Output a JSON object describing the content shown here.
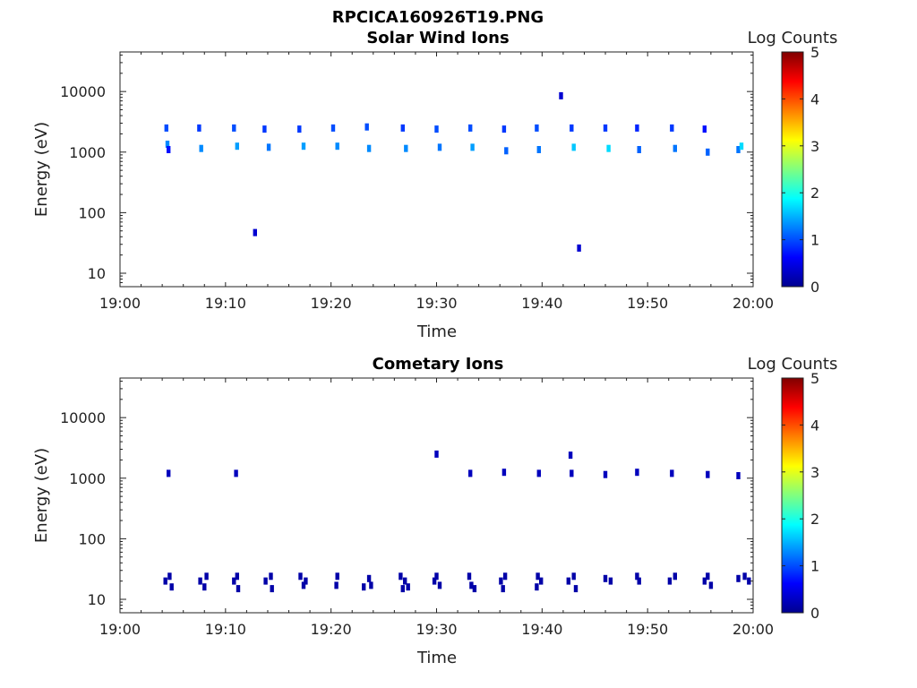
{
  "figure_title": "RPCICA160926T19.PNG",
  "chart_data": [
    {
      "type": "heatmap",
      "title": "Solar Wind Ions",
      "xlabel": "Time",
      "ylabel": "Energy (eV)",
      "x_ticks": [
        "19:00",
        "19:10",
        "19:20",
        "19:30",
        "19:40",
        "19:50",
        "20:00"
      ],
      "xlim": [
        "19:00",
        "20:00"
      ],
      "y_scale": "log",
      "y_ticks": [
        "10",
        "100",
        "1000",
        "10000"
      ],
      "ylim": [
        6,
        45000
      ],
      "colorbar": {
        "label": "Log Counts",
        "ticks": [
          "0",
          "1",
          "2",
          "3",
          "4",
          "5"
        ],
        "range": [
          0,
          5
        ],
        "colormap": "jet"
      },
      "cells": [
        [
          "19:04.4",
          2500,
          1.0
        ],
        [
          "19:04.5",
          1350,
          1.3
        ],
        [
          "19:04.6",
          1100,
          0.7
        ],
        [
          "19:07.5",
          2500,
          0.9
        ],
        [
          "19:07.7",
          1150,
          1.3
        ],
        [
          "19:10.8",
          2500,
          1.0
        ],
        [
          "19:11.1",
          1250,
          1.4
        ],
        [
          "19:13.7",
          2400,
          0.9
        ],
        [
          "19:14.1",
          1200,
          1.2
        ],
        [
          "19:17.0",
          2400,
          0.9
        ],
        [
          "19:17.4",
          1250,
          1.4
        ],
        [
          "19:20.2",
          2500,
          1.0
        ],
        [
          "19:20.6",
          1250,
          1.3
        ],
        [
          "19:23.4",
          2600,
          1.0
        ],
        [
          "19:23.6",
          1150,
          1.3
        ],
        [
          "19:26.8",
          2500,
          0.9
        ],
        [
          "19:27.1",
          1150,
          1.3
        ],
        [
          "19:30.0",
          2400,
          1.0
        ],
        [
          "19:30.3",
          1200,
          1.2
        ],
        [
          "19:33.2",
          2500,
          1.0
        ],
        [
          "19:33.4",
          1200,
          1.4
        ],
        [
          "19:36.4",
          2400,
          0.9
        ],
        [
          "19:36.6",
          1050,
          1.1
        ],
        [
          "19:39.5",
          2500,
          1.0
        ],
        [
          "19:39.7",
          1100,
          1.2
        ],
        [
          "19:41.8",
          8500,
          0.4
        ],
        [
          "19:42.8",
          2500,
          0.9
        ],
        [
          "19:43.0",
          1200,
          1.6
        ],
        [
          "19:43.5",
          26,
          0.4
        ],
        [
          "19:46.0",
          2500,
          0.9
        ],
        [
          "19:46.3",
          1150,
          1.7
        ],
        [
          "19:49.0",
          2500,
          0.8
        ],
        [
          "19:49.2",
          1100,
          1.1
        ],
        [
          "19:52.3",
          2500,
          0.9
        ],
        [
          "19:52.6",
          1150,
          1.2
        ],
        [
          "19:55.4",
          2400,
          0.7
        ],
        [
          "19:55.7",
          1000,
          1.1
        ],
        [
          "19:58.6",
          1100,
          1.2
        ],
        [
          "19:58.9",
          1250,
          1.7
        ],
        [
          "19:12.8",
          47,
          0.4
        ]
      ]
    },
    {
      "type": "heatmap",
      "title": "Cometary Ions",
      "xlabel": "Time",
      "ylabel": "Energy (eV)",
      "x_ticks": [
        "19:00",
        "19:10",
        "19:20",
        "19:30",
        "19:40",
        "19:50",
        "20:00"
      ],
      "xlim": [
        "19:00",
        "20:00"
      ],
      "y_scale": "log",
      "y_ticks": [
        "10",
        "100",
        "1000",
        "10000"
      ],
      "ylim": [
        6,
        45000
      ],
      "colorbar": {
        "label": "Log Counts",
        "ticks": [
          "0",
          "1",
          "2",
          "3",
          "4",
          "5"
        ],
        "range": [
          0,
          5
        ],
        "colormap": "jet"
      },
      "cells": [
        [
          "19:04.6",
          1200,
          0.3
        ],
        [
          "19:11.0",
          1200,
          0.3
        ],
        [
          "19:30.0",
          2500,
          0.3
        ],
        [
          "19:33.2",
          1200,
          0.3
        ],
        [
          "19:36.4",
          1250,
          0.3
        ],
        [
          "19:39.7",
          1200,
          0.3
        ],
        [
          "19:42.7",
          2400,
          0.3
        ],
        [
          "19:42.8",
          1200,
          0.3
        ],
        [
          "19:46.0",
          1150,
          0.3
        ],
        [
          "19:49.0",
          1250,
          0.3
        ],
        [
          "19:52.3",
          1200,
          0.3
        ],
        [
          "19:55.7",
          1150,
          0.3
        ],
        [
          "19:58.6",
          1100,
          0.3
        ],
        [
          "19:04.3",
          20,
          0.2
        ],
        [
          "19:04.7",
          24,
          0.2
        ],
        [
          "19:04.9",
          16,
          0.2
        ],
        [
          "19:07.6",
          20,
          0.2
        ],
        [
          "19:08.0",
          16,
          0.2
        ],
        [
          "19:08.2",
          24,
          0.2
        ],
        [
          "19:10.8",
          20,
          0.2
        ],
        [
          "19:11.1",
          24,
          0.2
        ],
        [
          "19:11.2",
          15,
          0.2
        ],
        [
          "19:13.8",
          20,
          0.2
        ],
        [
          "19:14.3",
          24,
          0.2
        ],
        [
          "19:14.4",
          15,
          0.2
        ],
        [
          "19:17.1",
          24,
          0.2
        ],
        [
          "19:17.4",
          17,
          0.2
        ],
        [
          "19:17.6",
          20,
          0.2
        ],
        [
          "19:20.6",
          24,
          0.2
        ],
        [
          "19:20.5",
          17,
          0.2
        ],
        [
          "19:23.1",
          16,
          0.2
        ],
        [
          "19:23.6",
          22,
          0.2
        ],
        [
          "19:23.8",
          17,
          0.2
        ],
        [
          "19:26.6",
          24,
          0.2
        ],
        [
          "19:27.0",
          20,
          0.2
        ],
        [
          "19:27.3",
          16,
          0.2
        ],
        [
          "19:26.8",
          15,
          0.2
        ],
        [
          "19:30.0",
          24,
          0.2
        ],
        [
          "19:30.3",
          17,
          0.2
        ],
        [
          "19:29.8",
          20,
          0.2
        ],
        [
          "19:33.1",
          24,
          0.2
        ],
        [
          "19:33.3",
          17,
          0.2
        ],
        [
          "19:33.6",
          15,
          0.2
        ],
        [
          "19:36.1",
          20,
          0.2
        ],
        [
          "19:36.5",
          24,
          0.2
        ],
        [
          "19:36.3",
          15,
          0.2
        ],
        [
          "19:39.6",
          24,
          0.2
        ],
        [
          "19:39.9",
          20,
          0.2
        ],
        [
          "19:39.5",
          16,
          0.2
        ],
        [
          "19:42.5",
          20,
          0.2
        ],
        [
          "19:43.0",
          24,
          0.2
        ],
        [
          "19:43.2",
          15,
          0.2
        ],
        [
          "19:46.0",
          22,
          0.2
        ],
        [
          "19:46.5",
          20,
          0.2
        ],
        [
          "19:49.0",
          24,
          0.2
        ],
        [
          "19:49.2",
          20,
          0.2
        ],
        [
          "19:52.1",
          20,
          0.2
        ],
        [
          "19:52.6",
          24,
          0.2
        ],
        [
          "19:55.7",
          24,
          0.2
        ],
        [
          "19:56.0",
          17,
          0.2
        ],
        [
          "19:55.4",
          20,
          0.2
        ],
        [
          "19:58.6",
          22,
          0.2
        ],
        [
          "19:59.2",
          24,
          0.2
        ],
        [
          "19:59.6",
          20,
          0.2
        ]
      ]
    }
  ]
}
